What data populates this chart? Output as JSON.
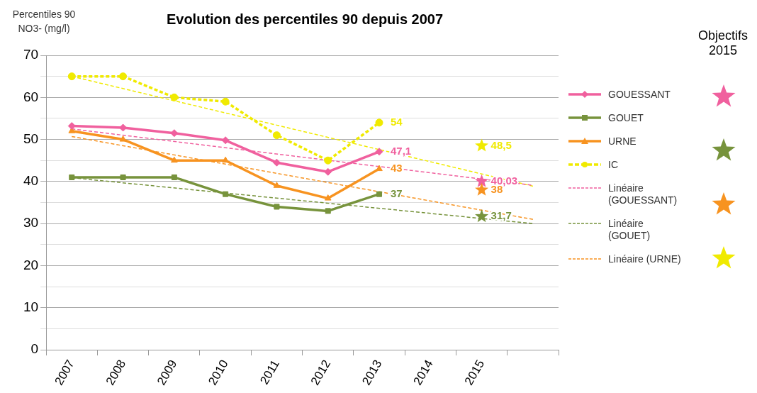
{
  "chart_data": {
    "type": "line",
    "title": "Evolution des percentiles 90 depuis 2007",
    "ylabel": "Percentiles 90 NO3- (mg/l)",
    "categories": [
      "2007",
      "2008",
      "2009",
      "2010",
      "2011",
      "2012",
      "2013",
      "2014",
      "2015",
      null
    ],
    "ylim": [
      0,
      70
    ],
    "yticks": [
      0,
      {
        "value": 5,
        "label": null
      },
      10,
      {
        "value": 15,
        "label": null
      },
      20,
      {
        "value": 25,
        "label": null
      },
      30,
      {
        "value": 35,
        "label": null
      },
      40,
      {
        "value": 45,
        "label": null
      },
      50,
      {
        "value": 55,
        "label": null
      },
      60,
      {
        "value": 65,
        "label": null
      },
      70
    ],
    "grid": "y",
    "legend": "right",
    "annotations": [
      "Objectifs 2015"
    ],
    "series": [
      {
        "name": "GOUESSANT",
        "color": "#f0609e",
        "marker": "diamond",
        "line_style": "solid",
        "values": [
          53.2,
          52.8,
          51.5,
          49.8,
          44.5,
          42.3,
          47.1,
          null,
          null,
          null
        ],
        "value_labels": [
          null,
          null,
          null,
          null,
          null,
          null,
          "47,1",
          null,
          null,
          null
        ]
      },
      {
        "name": "GOUET",
        "color": "#77933c",
        "marker": "square",
        "line_style": "solid",
        "values": [
          41,
          41,
          41,
          37,
          34,
          33,
          37,
          null,
          null,
          null
        ],
        "value_labels": [
          null,
          null,
          null,
          null,
          null,
          null,
          "37",
          null,
          null,
          null
        ]
      },
      {
        "name": "URNE",
        "color": "#f79320",
        "marker": "triangle",
        "line_style": "solid",
        "values": [
          52,
          50,
          45,
          45,
          39,
          36,
          43,
          null,
          null,
          null
        ],
        "value_labels": [
          null,
          null,
          null,
          null,
          null,
          null,
          "43",
          null,
          null,
          null
        ]
      },
      {
        "name": "IC",
        "color": "#f0ea00",
        "marker": "circle",
        "line_style": "dashed",
        "values": [
          65,
          65,
          60,
          59,
          51,
          45,
          54,
          null,
          null,
          null
        ],
        "value_labels": [
          null,
          null,
          null,
          null,
          null,
          null,
          "54",
          null,
          null,
          null
        ]
      },
      {
        "name": "Linéaire (GOUESSANT)",
        "color": "#f0609e",
        "marker": "none",
        "line_style": "dashed",
        "values": [
          52.5,
          null,
          null,
          null,
          null,
          null,
          null,
          null,
          null,
          39.1
        ]
      },
      {
        "name": "Linéaire (GOUET)",
        "color": "#77933c",
        "marker": "none",
        "line_style": "dashed",
        "values": [
          40.9,
          null,
          null,
          null,
          null,
          null,
          null,
          null,
          null,
          30
        ]
      },
      {
        "name": "Linéaire (URNE)",
        "color": "#f79320",
        "marker": "none",
        "line_style": "dashed",
        "values": [
          50.7,
          null,
          null,
          null,
          null,
          null,
          null,
          null,
          null,
          31
        ]
      },
      {
        "color": "#f0ea00",
        "line_style": "dashed",
        "values": [
          65,
          null,
          null,
          null,
          null,
          null,
          null,
          null,
          null,
          38.9
        ]
      },
      {
        "type": "scatter",
        "color": "#f0609e",
        "marker": "star",
        "values": [
          null,
          null,
          null,
          null,
          null,
          null,
          null,
          null,
          40.03,
          null
        ],
        "value_labels": [
          null,
          null,
          null,
          null,
          null,
          null,
          null,
          null,
          "40,03",
          null
        ]
      },
      {
        "type": "scatter",
        "color": "#77933c",
        "marker": "star",
        "values": [
          null,
          null,
          null,
          null,
          null,
          null,
          null,
          null,
          31.7,
          null
        ],
        "value_labels": [
          null,
          null,
          null,
          null,
          null,
          null,
          null,
          null,
          "31,7",
          null
        ]
      },
      {
        "type": "scatter",
        "color": "#f79320",
        "marker": "star",
        "values": [
          null,
          null,
          null,
          null,
          null,
          null,
          null,
          null,
          38,
          null
        ],
        "value_labels": [
          null,
          null,
          null,
          null,
          null,
          null,
          null,
          null,
          "38",
          null
        ]
      },
      {
        "type": "scatter",
        "color": "#f0ea00",
        "marker": "star",
        "values": [
          null,
          null,
          null,
          null,
          null,
          null,
          null,
          null,
          48.5,
          null
        ],
        "value_labels": [
          null,
          null,
          null,
          null,
          null,
          null,
          null,
          null,
          "48,5",
          null
        ]
      }
    ]
  }
}
